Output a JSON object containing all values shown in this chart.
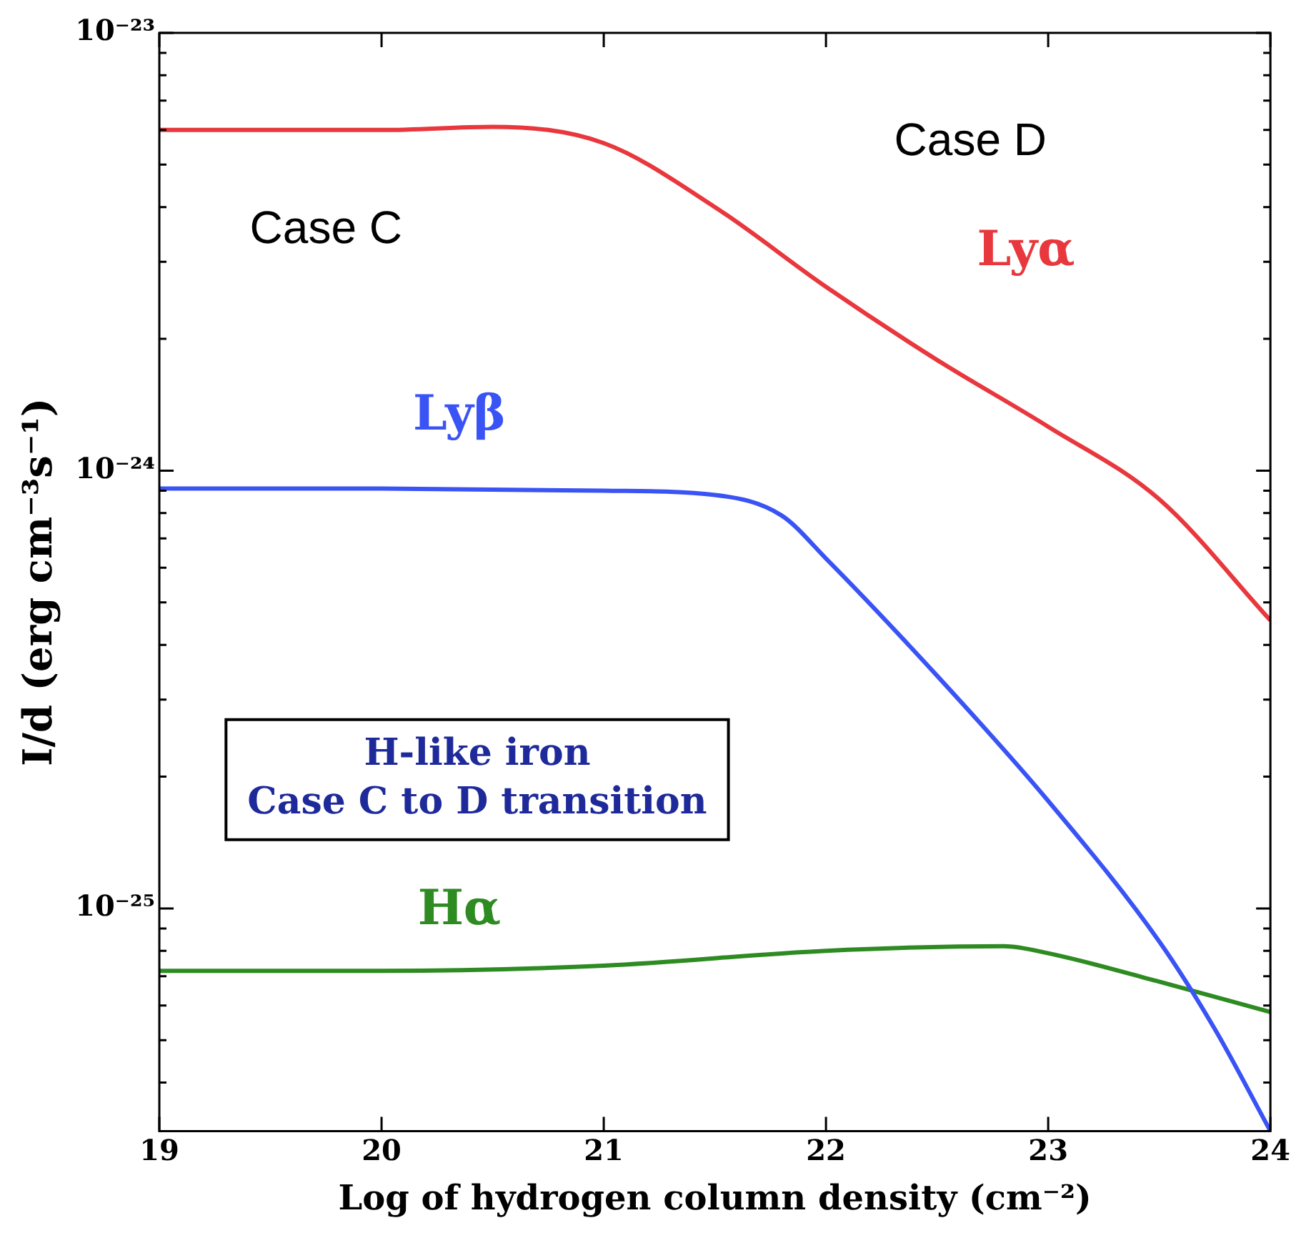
{
  "chart_data": {
    "type": "line",
    "xlabel": "Log of hydrogen column density (cm⁻²)",
    "ylabel": "I/d (erg cm⁻³s⁻¹)",
    "xlim": [
      19,
      24
    ],
    "xticks": [
      19,
      20,
      21,
      22,
      23,
      24
    ],
    "ylim": [
      3.1e-26,
      1e-23
    ],
    "log": "y",
    "yticks": [
      {
        "value": 4e-26,
        "label": null
      },
      {
        "value": 5e-26,
        "label": null
      },
      {
        "value": 6e-26,
        "label": null
      },
      {
        "value": 7e-26,
        "label": null
      },
      {
        "value": 8e-26,
        "label": null
      },
      {
        "value": 9e-26,
        "label": null
      },
      {
        "value": 1e-25,
        "label": "10⁻²⁵"
      },
      {
        "value": 2e-25,
        "label": null
      },
      {
        "value": 3e-25,
        "label": null
      },
      {
        "value": 4e-25,
        "label": null
      },
      {
        "value": 5e-25,
        "label": null
      },
      {
        "value": 6e-25,
        "label": null
      },
      {
        "value": 7e-25,
        "label": null
      },
      {
        "value": 8e-25,
        "label": null
      },
      {
        "value": 9e-25,
        "label": null
      },
      {
        "value": 1e-24,
        "label": "10⁻²⁴"
      },
      {
        "value": 2e-24,
        "label": null
      },
      {
        "value": 3e-24,
        "label": null
      },
      {
        "value": 4e-24,
        "label": null
      },
      {
        "value": 5e-24,
        "label": null
      },
      {
        "value": 6e-24,
        "label": null
      },
      {
        "value": 7e-24,
        "label": null
      },
      {
        "value": 8e-24,
        "label": null
      },
      {
        "value": 9e-24,
        "label": null
      },
      {
        "value": 1e-23,
        "label": "10⁻²³"
      }
    ],
    "grid": false,
    "legend": false,
    "marker": "none",
    "line_style": "solid",
    "series": [
      {
        "name": "Lyα",
        "color": "#e8383d",
        "x": [
          19,
          20,
          20.5,
          21,
          21.5,
          22,
          22.5,
          23,
          23.5,
          24
        ],
        "values": [
          6e-24,
          6e-24,
          6.1e-24,
          5.6e-24,
          4e-24,
          2.63e-24,
          1.79e-24,
          1.26e-24,
          8.6e-25,
          4.55e-25
        ]
      },
      {
        "name": "Lyβ",
        "color": "#3a53f5",
        "x": [
          19,
          20,
          21,
          21.5,
          21.8,
          22,
          22.5,
          23,
          23.5,
          23.75,
          24
        ],
        "values": [
          9.1e-25,
          9.1e-25,
          9e-25,
          8.8e-25,
          7.9e-25,
          6.3e-25,
          3.4e-25,
          1.76e-25,
          8.4e-26,
          5.3e-26,
          3.1e-26
        ]
      },
      {
        "name": "Hα",
        "color": "#2e8b22",
        "x": [
          19,
          20,
          21,
          22,
          22.8,
          23,
          23.5,
          24
        ],
        "values": [
          7.2e-26,
          7.2e-26,
          7.4e-26,
          8e-26,
          8.2e-26,
          7.9e-26,
          6.8e-26,
          5.8e-26
        ]
      }
    ],
    "annotations": [
      "Case C",
      "Case D",
      "H-like iron\nCase C to D transition"
    ]
  }
}
